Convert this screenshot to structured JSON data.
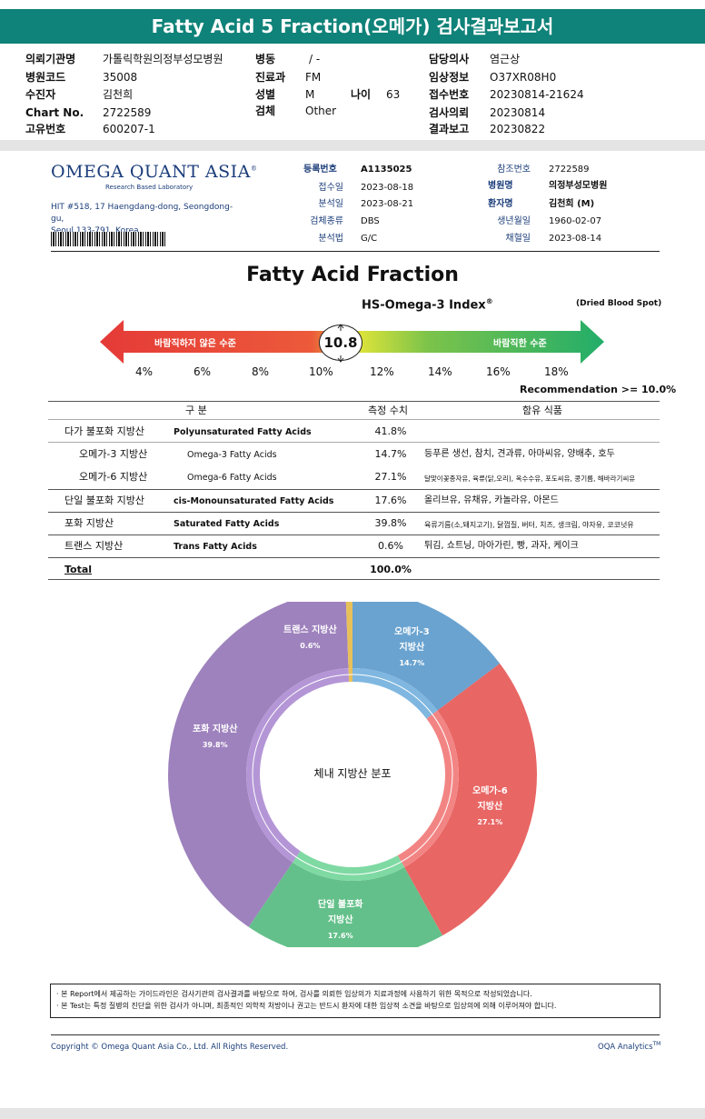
{
  "page_title": "Fatty Acid 5 Fraction(오메가) 검사결과보고서",
  "header": {
    "col1": [
      {
        "label": "의뢰기관명",
        "value": "가톨릭학원의정부성모병원"
      },
      {
        "label": "병원코드",
        "value": "35008"
      },
      {
        "label": "수진자",
        "value": "김천희"
      },
      {
        "label": "Chart No.",
        "value": "2722589"
      },
      {
        "label": "고유번호",
        "value": "600207-1"
      }
    ],
    "col2": [
      {
        "label": "병동",
        "value": "/ -"
      },
      {
        "label": "진료과",
        "value": "FM"
      },
      {
        "label": "성별",
        "value": "M"
      },
      {
        "label": "검체",
        "value": "Other"
      }
    ],
    "age": {
      "label": "나이",
      "value": "63"
    },
    "col3": [
      {
        "label": "담당의사",
        "value": "염근상"
      },
      {
        "label": "임상정보",
        "value": "O37XR08H0"
      },
      {
        "label": "접수번호",
        "value": "20230814-21624"
      },
      {
        "label": "검사의뢰",
        "value": "20230814"
      },
      {
        "label": "결과보고",
        "value": "20230822"
      }
    ]
  },
  "lab": {
    "brand": "OMEGA QUANT ASIA",
    "brand_mark": "®",
    "subtitle": "Research Based Laboratory",
    "address_line1": "HIT #518, 17 Haengdang-dong, Seongdong-gu,",
    "address_line2": "Seoul 133-791, Korea."
  },
  "report_info": {
    "left": [
      {
        "label": "등록번호",
        "value": "A1135025",
        "bold": true
      },
      {
        "label": "접수일",
        "value": "2023-08-18"
      },
      {
        "label": "분석일",
        "value": "2023-08-21"
      },
      {
        "label": "검체종류",
        "value": "DBS"
      },
      {
        "label": "분석법",
        "value": "G/C"
      }
    ],
    "right": [
      {
        "label": "참조번호",
        "value": "2722589"
      },
      {
        "label": "병원명",
        "value": "의정부성모병원",
        "bold": true
      },
      {
        "label": "환자명",
        "value": "김천희 (M)",
        "bold": true
      },
      {
        "label": "생년월일",
        "value": "1960-02-07"
      },
      {
        "label": "채혈일",
        "value": "2023-08-14"
      }
    ]
  },
  "index": {
    "section_title": "Fatty Acid Fraction",
    "name": "HS-Omega-3 Index",
    "mark": "®",
    "sample_type": "(Dried Blood Spot)",
    "bad_label": "바람직하지 않은 수준",
    "good_label": "바람직한 수준",
    "value": "10.8",
    "ticks": [
      "4%",
      "6%",
      "8%",
      "10%",
      "12%",
      "14%",
      "16%",
      "18%"
    ],
    "recommendation": "Recommendation   >= 10.0%",
    "colors": {
      "bad": "#e8403c",
      "mid": "#d7de35",
      "good": "#2fb56a"
    }
  },
  "table": {
    "headers": {
      "category": "구 분",
      "value": "측정 수치",
      "food": "함유 식품"
    },
    "rows": [
      {
        "ko": "다가 불포화 지방산",
        "en": "Polyunsaturated Fatty Acids",
        "value": "41.8%",
        "food": ""
      },
      {
        "ko": "오메가-3 지방산",
        "en": "Omega-3 Fatty Acids",
        "value": "14.7%",
        "food": "등푸른 생선, 참치, 견과류, 아마씨유, 양배추, 호두"
      },
      {
        "ko": "오메가-6 지방산",
        "en": "Omega-6 Fatty Acids",
        "value": "27.1%",
        "food": "달맞이꽃종자유, 육류(닭,오리), 옥수수유, 포도씨유, 콩기름, 해바라기씨유"
      },
      {
        "ko": "단일 불포화 지방산",
        "en": "cis-Monounsaturated Fatty Acids",
        "value": "17.6%",
        "food": "올리브유, 유채유, 카놀라유, 아몬드"
      },
      {
        "ko": "포화 지방산",
        "en": "Saturated Fatty Acids",
        "value": "39.8%",
        "food": "육류기름(소,돼지고기), 닭껍질, 버터, 치즈, 생크림, 야자유, 코코넛유"
      },
      {
        "ko": "트랜스 지방산",
        "en": "Trans Fatty Acids",
        "value": "0.6%",
        "food": "튀김, 쇼트닝, 마아가린, 빵, 과자, 케이크"
      }
    ],
    "total": {
      "label": "Total",
      "value": "100.0%"
    }
  },
  "chart_data": {
    "type": "pie",
    "title": "체내 지방산 분포",
    "categories": [
      "오메가-3 지방산",
      "오메가-6 지방산",
      "단일 불포화 지방산",
      "포화 지방산",
      "트랜스 지방산"
    ],
    "values": [
      14.7,
      27.1,
      17.6,
      39.8,
      0.6
    ],
    "colors": [
      "#6aa3d0",
      "#e86664",
      "#64c08a",
      "#9e82bd",
      "#e8c05a"
    ],
    "inner_colors": [
      "#7fb7e0",
      "#f28584",
      "#7fd9a3",
      "#b496d6",
      "#e8c05a"
    ],
    "labels": [
      {
        "line1": "오메가-3",
        "line2": "지방산",
        "pct": "14.7%"
      },
      {
        "line1": "오메가-6",
        "line2": "지방산",
        "pct": "27.1%"
      },
      {
        "line1": "단일 불포화",
        "line2": "지방산",
        "pct": "17.6%"
      },
      {
        "line1": "포화 지방산",
        "line2": "",
        "pct": "39.8%"
      },
      {
        "line1": "트랜스 지방산",
        "line2": "",
        "pct": "0.6%"
      }
    ]
  },
  "notice": [
    "· 본 Report에서 제공하는 가이드라인은 검사기관의 검사결과를 바탕으로 하여, 검사를 의뢰한 임상의가 치료과정에 사용하기 위한 목적으로 작성되었습니다.",
    "· 본 Test는 특정 질병의 진단을 위한 검사가 아니며, 최종적인 의학적 처방이나 권고는 반드시 환자에 대한 임상적 소견을 바탕으로 임상의에 의해 이루어져야 합니다."
  ],
  "footer": {
    "copyright": "Copyright © Omega Quant Asia Co., Ltd.  All Rights Reserved.",
    "brand": "OQA Analytics",
    "brand_mark": "TM"
  }
}
